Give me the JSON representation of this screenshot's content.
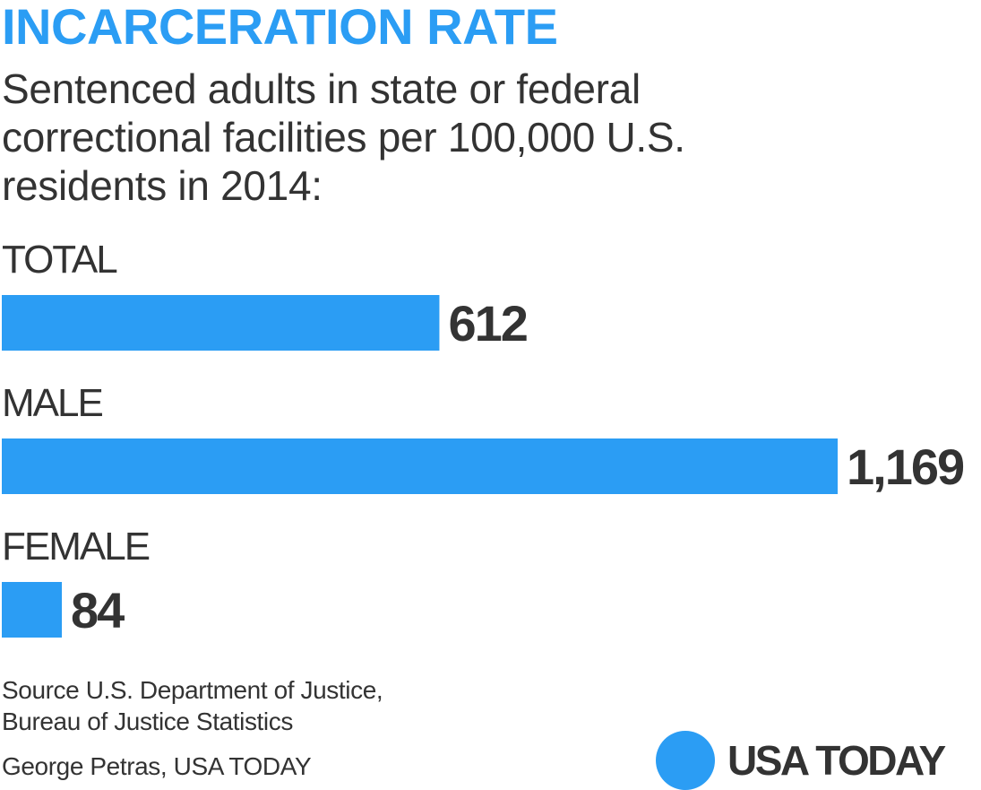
{
  "header": {
    "title": "INCARCERATION RATE",
    "subtitle_lines": [
      "Sentenced adults in state or federal",
      "correctional facilities per 100,000 U.S.",
      "residents in 2014:"
    ]
  },
  "chart_data": {
    "type": "bar",
    "orientation": "horizontal",
    "categories": [
      "TOTAL",
      "MALE",
      "FEMALE"
    ],
    "values": [
      612,
      1169,
      84
    ],
    "value_labels": [
      "612",
      "1,169",
      "84"
    ],
    "grid": false,
    "legend": "none"
  },
  "footer": {
    "source_lines": [
      "Source U.S. Department of Justice,",
      "Bureau of Justice Statistics"
    ],
    "credit": "George Petras, USA TODAY",
    "logo_text": "USA TODAY"
  },
  "colors": {
    "accent": "#2b9df4",
    "text": "#333333",
    "background": "#ffffff"
  }
}
